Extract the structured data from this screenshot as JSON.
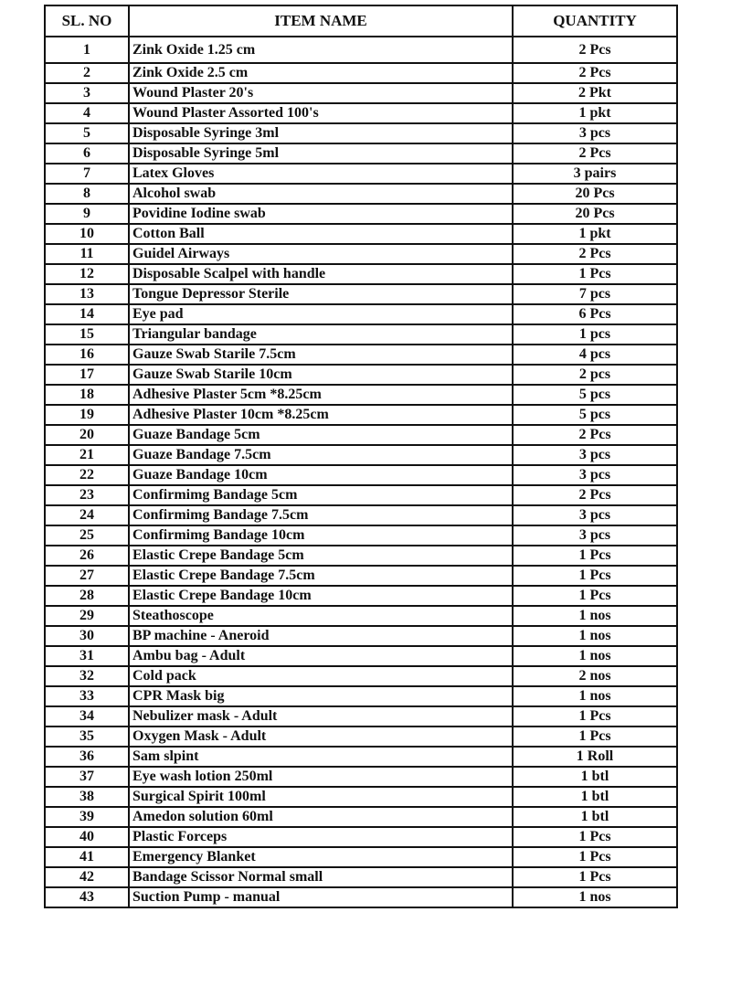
{
  "headers": {
    "sl_no": "SL. NO",
    "item_name": "ITEM NAME",
    "quantity": "QUANTITY"
  },
  "rows": [
    {
      "sl": "1",
      "item": "Zink Oxide 1.25 cm",
      "qty": "2 Pcs"
    },
    {
      "sl": "2",
      "item": "Zink Oxide 2.5 cm",
      "qty": "2 Pcs"
    },
    {
      "sl": "3",
      "item": "Wound Plaster 20's",
      "qty": "2 Pkt"
    },
    {
      "sl": "4",
      "item": "Wound Plaster Assorted 100's",
      "qty": "1 pkt"
    },
    {
      "sl": "5",
      "item": "Disposable Syringe 3ml",
      "qty": "3 pcs"
    },
    {
      "sl": "6",
      "item": "Disposable Syringe 5ml",
      "qty": "2 Pcs"
    },
    {
      "sl": "7",
      "item": "Latex Gloves",
      "qty": "3 pairs"
    },
    {
      "sl": "8",
      "item": "Alcohol swab",
      "qty": "20 Pcs"
    },
    {
      "sl": "9",
      "item": "Povidine Iodine swab",
      "qty": "20 Pcs"
    },
    {
      "sl": "10",
      "item": "Cotton Ball",
      "qty": "1 pkt"
    },
    {
      "sl": "11",
      "item": "Guidel Airways",
      "qty": "2 Pcs"
    },
    {
      "sl": "12",
      "item": "Disposable Scalpel with handle",
      "qty": "1 Pcs"
    },
    {
      "sl": "13",
      "item": "Tongue Depressor Sterile",
      "qty": "7 pcs"
    },
    {
      "sl": "14",
      "item": "Eye pad",
      "qty": "6 Pcs"
    },
    {
      "sl": "15",
      "item": "Triangular bandage",
      "qty": "1 pcs"
    },
    {
      "sl": "16",
      "item": "Gauze Swab Starile 7.5cm",
      "qty": "4 pcs"
    },
    {
      "sl": "17",
      "item": "Gauze Swab Starile 10cm",
      "qty": "2 pcs"
    },
    {
      "sl": "18",
      "item": "Adhesive Plaster 5cm *8.25cm",
      "qty": "5 pcs"
    },
    {
      "sl": "19",
      "item": "Adhesive Plaster 10cm *8.25cm",
      "qty": "5 pcs"
    },
    {
      "sl": "20",
      "item": "Guaze Bandage 5cm",
      "qty": "2 Pcs"
    },
    {
      "sl": "21",
      "item": "Guaze Bandage 7.5cm",
      "qty": "3 pcs"
    },
    {
      "sl": "22",
      "item": "Guaze Bandage 10cm",
      "qty": "3 pcs"
    },
    {
      "sl": "23",
      "item": "Confirmimg Bandage 5cm",
      "qty": "2 Pcs"
    },
    {
      "sl": "24",
      "item": "Confirmimg Bandage 7.5cm",
      "qty": "3 pcs"
    },
    {
      "sl": "25",
      "item": "Confirmimg Bandage 10cm",
      "qty": "3 pcs"
    },
    {
      "sl": "26",
      "item": "Elastic Crepe Bandage 5cm",
      "qty": "1 Pcs"
    },
    {
      "sl": "27",
      "item": "Elastic Crepe Bandage 7.5cm",
      "qty": "1 Pcs"
    },
    {
      "sl": "28",
      "item": "Elastic Crepe Bandage 10cm",
      "qty": "1 Pcs"
    },
    {
      "sl": "29",
      "item": "Steathoscope",
      "qty": "1 nos"
    },
    {
      "sl": "30",
      "item": "BP machine - Aneroid",
      "qty": "1 nos"
    },
    {
      "sl": "31",
      "item": "Ambu bag - Adult",
      "qty": "1 nos"
    },
    {
      "sl": "32",
      "item": "Cold pack",
      "qty": "2 nos"
    },
    {
      "sl": "33",
      "item": "CPR Mask big",
      "qty": "1 nos"
    },
    {
      "sl": "34",
      "item": "Nebulizer mask - Adult",
      "qty": "1 Pcs"
    },
    {
      "sl": "35",
      "item": "Oxygen Mask - Adult",
      "qty": "1 Pcs"
    },
    {
      "sl": "36",
      "item": "Sam slpint",
      "qty": "1 Roll"
    },
    {
      "sl": "37",
      "item": "Eye wash lotion 250ml",
      "qty": "1 btl"
    },
    {
      "sl": "38",
      "item": "Surgical Spirit 100ml",
      "qty": "1 btl"
    },
    {
      "sl": "39",
      "item": "Amedon solution 60ml",
      "qty": "1 btl"
    },
    {
      "sl": "40",
      "item": "Plastic Forceps",
      "qty": "1 Pcs"
    },
    {
      "sl": "41",
      "item": "Emergency Blanket",
      "qty": "1 Pcs"
    },
    {
      "sl": "42",
      "item": "Bandage Scissor Normal small",
      "qty": "1 Pcs"
    },
    {
      "sl": "43",
      "item": "Suction Pump - manual",
      "qty": "1 nos"
    }
  ]
}
